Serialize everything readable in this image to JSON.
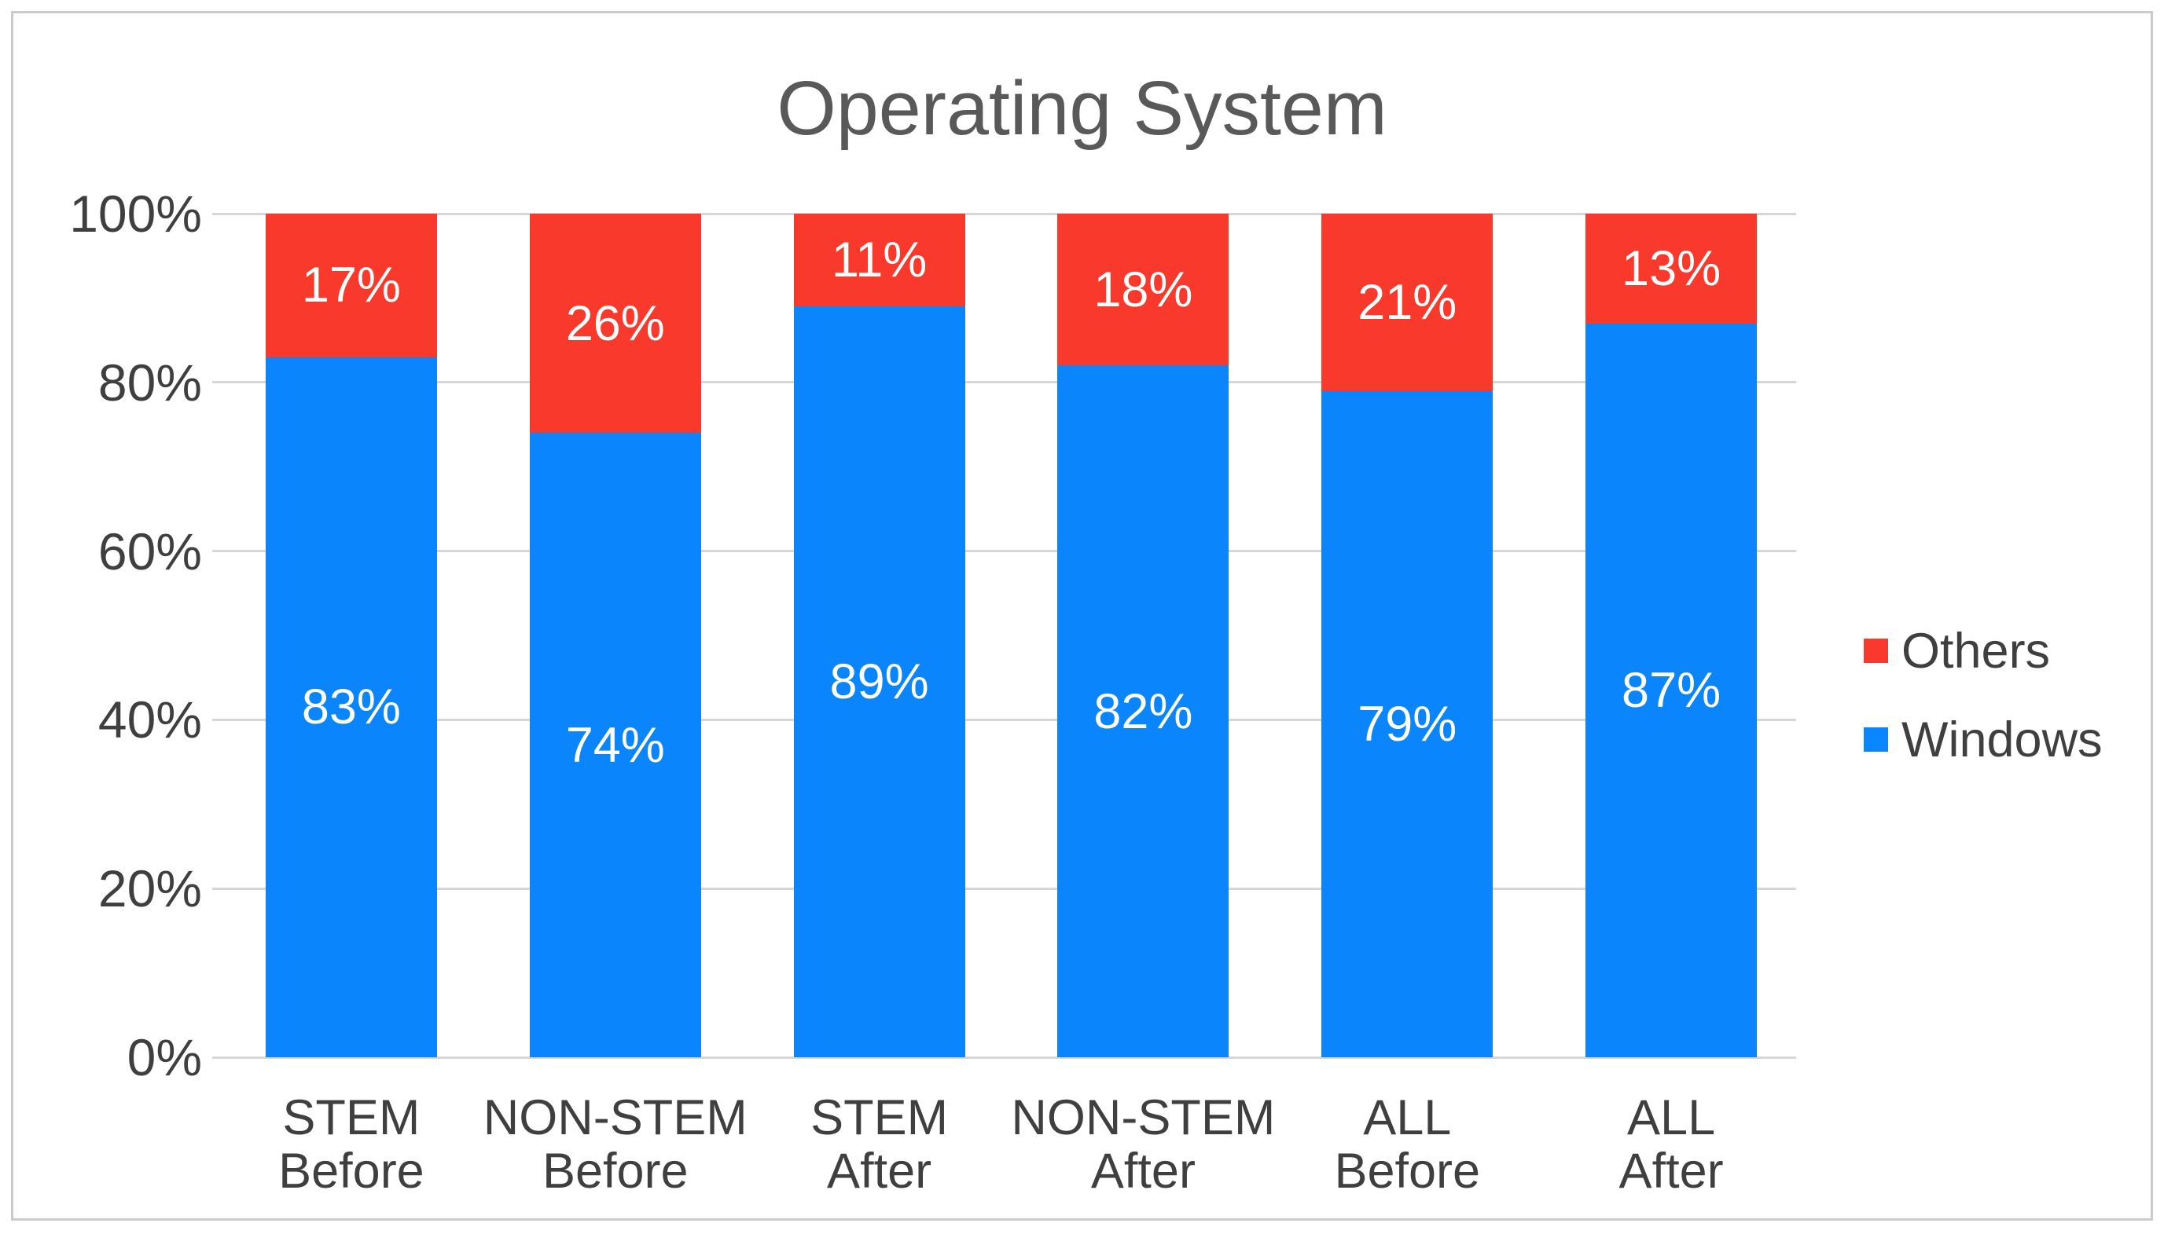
{
  "chart_data": {
    "type": "bar",
    "stacked": true,
    "orientation": "vertical",
    "title": "Operating System",
    "categories": [
      [
        "STEM",
        "Before"
      ],
      [
        "NON-STEM",
        "Before"
      ],
      [
        "STEM",
        "After"
      ],
      [
        "NON-STEM",
        "After"
      ],
      [
        "ALL",
        "Before"
      ],
      [
        "ALL",
        "After"
      ]
    ],
    "series": [
      {
        "name": "Windows",
        "color": "#0A85FB",
        "values": [
          83,
          74,
          89,
          82,
          79,
          87
        ]
      },
      {
        "name": "Others",
        "color": "#F8392C",
        "values": [
          17,
          26,
          11,
          18,
          21,
          13
        ]
      }
    ],
    "data_label_suffix": "%",
    "data_label_color": "#ffffff",
    "y_axis": {
      "min": 0,
      "max": 100,
      "tick_values": [
        0,
        20,
        40,
        60,
        80,
        100
      ],
      "tick_labels": [
        "0%",
        "20%",
        "40%",
        "60%",
        "80%",
        "100%"
      ]
    },
    "legend": {
      "position": "right",
      "entries": [
        "Others",
        "Windows"
      ]
    },
    "grid": true
  },
  "colors": {
    "background": "#ffffff",
    "frame_border": "#cbcbcb",
    "gridline": "#d6d6d6",
    "title_text": "#595959",
    "axis_text": "#3f3f3f"
  }
}
